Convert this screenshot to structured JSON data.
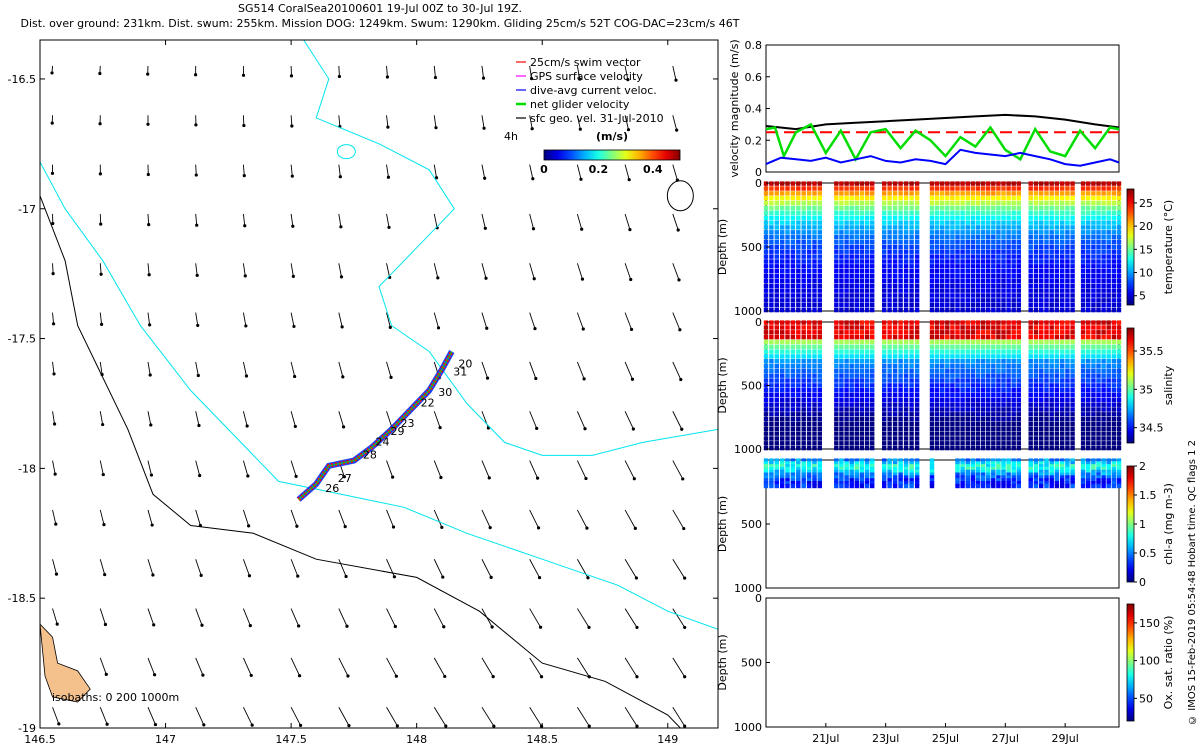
{
  "header": {
    "line1": "SG514 CoralSea20100601 19-Jul 00Z to 30-Jul 19Z.",
    "line2": "Dist. over ground: 231km. Dist. swum: 255km. Mission DOG: 1249km. Swum: 1290km. Gliding 25cm/s 52T COG-DAC=23cm/s 46T"
  },
  "side_text": "© IMOS 15-Feb-2019 05:54:48 Hobart time. QC flags 1  2",
  "colors": {
    "coast": "#00e5ee",
    "isobath": "#000000",
    "land": "#f4c08c",
    "swim": "#ff0000",
    "gps": "#ff00ff",
    "dac": "#0000ff",
    "net": "#00dd00",
    "geo": "#000000",
    "track_blue": "#0033ff"
  },
  "chart_data": [
    {
      "type": "scatter",
      "role": "map",
      "xlim": [
        146.5,
        149.2
      ],
      "ylim": [
        -19.0,
        -16.35
      ],
      "xticks": [
        146.5,
        147,
        147.5,
        148,
        148.5,
        149
      ],
      "xtick_labels": [
        "146.5",
        "147",
        "147.5",
        "148",
        "148.5",
        "149"
      ],
      "yticks": [
        -16.5,
        -17,
        -17.5,
        -18,
        -18.5,
        -19
      ],
      "ytick_labels": [
        "-16.5",
        "-17",
        "-17.5",
        "-18",
        "-18.5",
        "-19"
      ],
      "legend": {
        "placement": "top-right",
        "entries": [
          "25cm/s swim vector",
          "GPS surface velocity",
          "dive-avg current veloc.",
          "net glider velocity",
          "sfc geo. vel. 31-Jul-2010"
        ]
      },
      "colorbar": {
        "label": "(m/s)",
        "side_label": "4h",
        "ticks": [
          "0",
          "0.2",
          "0.4"
        ],
        "range": [
          0,
          0.5
        ]
      },
      "isobath_label": "isobaths: 0   200  1000m",
      "track_day_labels": [
        {
          "text": "20",
          "lon": 148.15,
          "lat": -17.6
        },
        {
          "text": "31",
          "lon": 148.13,
          "lat": -17.63
        },
        {
          "text": "30",
          "lon": 148.07,
          "lat": -17.71
        },
        {
          "text": "22",
          "lon": 148.0,
          "lat": -17.75
        },
        {
          "text": "23",
          "lon": 147.92,
          "lat": -17.83
        },
        {
          "text": "29",
          "lon": 147.88,
          "lat": -17.86
        },
        {
          "text": "24",
          "lon": 147.82,
          "lat": -17.9
        },
        {
          "text": "28",
          "lon": 147.77,
          "lat": -17.95
        },
        {
          "text": "27",
          "lon": 147.67,
          "lat": -18.04
        },
        {
          "text": "26",
          "lon": 147.62,
          "lat": -18.08
        }
      ],
      "track": {
        "start": [
          147.53,
          -18.12
        ],
        "end": [
          148.14,
          -17.55
        ]
      },
      "current_field": "southward geostrophic surface currents, stronger toward the southeast"
    },
    {
      "type": "line",
      "role": "velocity",
      "ylabel": "velocity magnitude (m/s)",
      "ylim": [
        0,
        0.8
      ],
      "yticks": [
        0,
        0.2,
        0.4,
        0.6,
        0.8
      ],
      "ytick_labels": [
        "0",
        "0.2",
        "0.4",
        "0.6",
        "0.8"
      ],
      "xlim": [
        0,
        11.8
      ],
      "series": [
        {
          "color": "#000000",
          "x": [
            0,
            1,
            2,
            3,
            4,
            5,
            6,
            7,
            8,
            9,
            10,
            11,
            11.8
          ],
          "y": [
            0.29,
            0.27,
            0.3,
            0.31,
            0.32,
            0.33,
            0.34,
            0.35,
            0.36,
            0.35,
            0.33,
            0.3,
            0.28
          ]
        },
        {
          "color": "#ff0000",
          "dashed": true,
          "x": [
            0,
            11.8
          ],
          "y": [
            0.25,
            0.25
          ]
        },
        {
          "color": "#00dd00",
          "x": [
            0,
            0.3,
            0.6,
            1.0,
            1.5,
            2.0,
            2.5,
            3.0,
            3.5,
            4.0,
            4.5,
            5.0,
            5.5,
            6.0,
            6.5,
            7.0,
            7.5,
            8.0,
            8.5,
            9.0,
            9.5,
            10.0,
            10.5,
            11.0,
            11.5,
            11.8
          ],
          "y": [
            0.27,
            0.28,
            0.1,
            0.25,
            0.3,
            0.12,
            0.26,
            0.08,
            0.25,
            0.27,
            0.15,
            0.26,
            0.2,
            0.1,
            0.22,
            0.16,
            0.28,
            0.14,
            0.08,
            0.27,
            0.13,
            0.1,
            0.26,
            0.15,
            0.28,
            0.27
          ]
        },
        {
          "color": "#0000ff",
          "x": [
            0,
            0.5,
            1.0,
            1.5,
            2.0,
            2.5,
            3.0,
            3.5,
            4.0,
            4.5,
            5.0,
            5.5,
            6.0,
            6.5,
            7.0,
            7.5,
            8.0,
            8.5,
            9.0,
            9.5,
            10.0,
            10.5,
            11.0,
            11.5,
            11.8
          ],
          "y": [
            0.05,
            0.09,
            0.08,
            0.07,
            0.09,
            0.06,
            0.08,
            0.1,
            0.07,
            0.06,
            0.08,
            0.07,
            0.05,
            0.14,
            0.12,
            0.11,
            0.1,
            0.12,
            0.1,
            0.08,
            0.05,
            0.04,
            0.06,
            0.08,
            0.06
          ]
        }
      ]
    },
    {
      "type": "scatter",
      "role": "temperature",
      "ylabel": "Depth (m)",
      "ylim": [
        1000,
        0
      ],
      "yticks": [
        0,
        500,
        1000
      ],
      "ytick_labels": [
        "0",
        "500",
        "1000"
      ],
      "colorbar": {
        "label": "temperature (°C)",
        "ticks": [
          "5",
          "10",
          "15",
          "20",
          "25"
        ],
        "range": [
          3,
          28
        ]
      },
      "max_depth": 1000
    },
    {
      "type": "scatter",
      "role": "salinity",
      "ylabel": "Depth (m)",
      "ylim": [
        1000,
        0
      ],
      "yticks": [
        0,
        500,
        1000
      ],
      "ytick_labels": [
        "0",
        "500",
        "1000"
      ],
      "colorbar": {
        "label": "salinity",
        "ticks": [
          "34.5",
          "35",
          "35.5"
        ],
        "range": [
          34.3,
          35.8
        ]
      },
      "max_depth": 1000
    },
    {
      "type": "scatter",
      "role": "chlorophyll",
      "ylabel": "Depth (m)",
      "ylim": [
        1000,
        0
      ],
      "yticks": [
        500,
        1000
      ],
      "ytick_labels": [
        "500",
        "1000"
      ],
      "colorbar": {
        "label": "chl-a (mg m-3)",
        "ticks": [
          "0",
          "0.5",
          "1",
          "1.5",
          "2"
        ],
        "range": [
          0,
          2
        ]
      },
      "max_depth": 220
    },
    {
      "type": "scatter",
      "role": "oxygen",
      "ylabel": "Depth (m)",
      "ylim": [
        1000,
        0
      ],
      "yticks": [
        0,
        500,
        1000
      ],
      "ytick_labels": [
        "0",
        "500",
        "1000"
      ],
      "colorbar": {
        "label": "Ox. sat. ratio (%)",
        "ticks": [
          "50",
          "100",
          "150"
        ],
        "range": [
          20,
          175
        ]
      },
      "xticks": [
        2,
        4,
        6,
        8,
        10
      ],
      "xtick_labels": [
        "21Jul",
        "23Jul",
        "25Jul",
        "27Jul",
        "29Jul"
      ]
    }
  ],
  "dive_groups": [
    [
      0,
      1.8
    ],
    [
      2.35,
      3.55
    ],
    [
      3.95,
      5.05
    ],
    [
      5.55,
      8.45
    ],
    [
      8.85,
      10.25
    ],
    [
      10.6,
      11.8
    ]
  ]
}
